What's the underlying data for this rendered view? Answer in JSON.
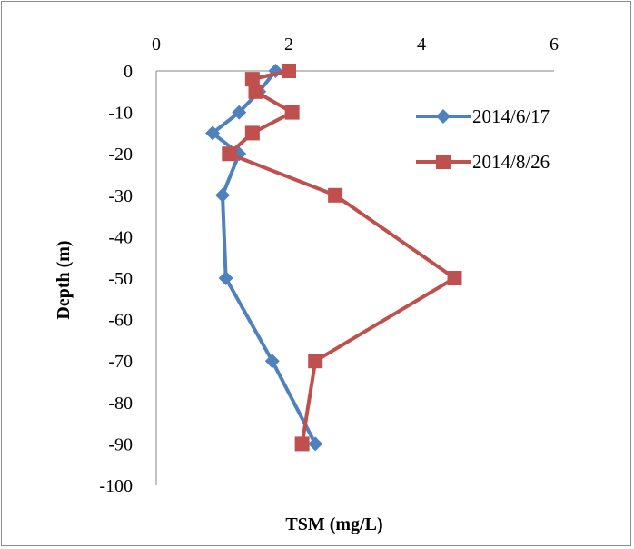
{
  "chart_data": {
    "type": "line",
    "xlabel": "TSM (mg/L)",
    "ylabel": "Depth (m)",
    "xlim": [
      0,
      6
    ],
    "ylim": [
      -100,
      0
    ],
    "x_ticks": [
      "0",
      "2",
      "4",
      "6"
    ],
    "y_ticks": [
      "0",
      "-10",
      "-20",
      "-30",
      "-40",
      "-50",
      "-60",
      "-70",
      "-80",
      "-90",
      "-100"
    ],
    "x_axis_position": "top",
    "grid": false,
    "legend_position": "right",
    "series": [
      {
        "name": "2014/6/17",
        "color": "#4f81bd",
        "marker": "diamond",
        "points": [
          {
            "x": 1.8,
            "y": 0
          },
          {
            "x": 1.55,
            "y": -5
          },
          {
            "x": 1.25,
            "y": -10
          },
          {
            "x": 0.85,
            "y": -15
          },
          {
            "x": 1.25,
            "y": -20
          },
          {
            "x": 1.0,
            "y": -30
          },
          {
            "x": 1.05,
            "y": -50
          },
          {
            "x": 1.75,
            "y": -70
          },
          {
            "x": 2.4,
            "y": -90
          }
        ]
      },
      {
        "name": "2014/8/26",
        "color": "#c0504d",
        "marker": "square",
        "points": [
          {
            "x": 2.0,
            "y": 0
          },
          {
            "x": 1.45,
            "y": -2
          },
          {
            "x": 1.5,
            "y": -5
          },
          {
            "x": 2.05,
            "y": -10
          },
          {
            "x": 1.45,
            "y": -15
          },
          {
            "x": 1.1,
            "y": -20
          },
          {
            "x": 2.7,
            "y": -30
          },
          {
            "x": 4.5,
            "y": -50
          },
          {
            "x": 2.4,
            "y": -70
          },
          {
            "x": 2.2,
            "y": -90
          }
        ]
      }
    ]
  }
}
